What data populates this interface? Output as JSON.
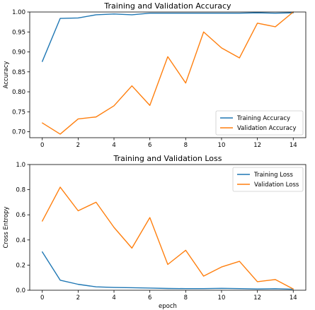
{
  "chart_data": [
    {
      "type": "line",
      "title": "Training and Validation Accuracy",
      "xlabel": "",
      "ylabel": "Accuracy",
      "xlim": [
        -0.7,
        14.7
      ],
      "ylim": [
        0.685,
        1.0
      ],
      "xticks": [
        0,
        2,
        4,
        6,
        8,
        10,
        12,
        14
      ],
      "yticks": [
        0.7,
        0.75,
        0.8,
        0.85,
        0.9,
        0.95,
        1.0
      ],
      "ytick_labels": [
        "0.70",
        "0.75",
        "0.80",
        "0.85",
        "0.90",
        "0.95",
        "1.00"
      ],
      "legend_position": "bottom-right",
      "x": [
        0,
        1,
        2,
        3,
        4,
        5,
        6,
        7,
        8,
        9,
        10,
        11,
        12,
        13,
        14
      ],
      "series": [
        {
          "name": "Training Accuracy",
          "color": "#1f77b4",
          "values": [
            0.876,
            0.984,
            0.985,
            0.993,
            0.995,
            0.993,
            0.997,
            0.997,
            0.997,
            0.997,
            0.997,
            0.997,
            0.998,
            0.997,
            0.998
          ]
        },
        {
          "name": "Validation Accuracy",
          "color": "#ff7f0e",
          "values": [
            0.722,
            0.694,
            0.732,
            0.737,
            0.765,
            0.815,
            0.766,
            0.888,
            0.822,
            0.95,
            0.91,
            0.885,
            0.972,
            0.963,
            1.0
          ]
        }
      ]
    },
    {
      "type": "line",
      "title": "Training and Validation Loss",
      "xlabel": "epoch",
      "ylabel": "Cross Entropy",
      "xlim": [
        -0.7,
        14.7
      ],
      "ylim": [
        0.0,
        1.0
      ],
      "xticks": [
        0,
        2,
        4,
        6,
        8,
        10,
        12,
        14
      ],
      "yticks": [
        0.0,
        0.2,
        0.4,
        0.6,
        0.8,
        1.0
      ],
      "ytick_labels": [
        "0.0",
        "0.2",
        "0.4",
        "0.6",
        "0.8",
        "1.0"
      ],
      "legend_position": "top-right",
      "x": [
        0,
        1,
        2,
        3,
        4,
        5,
        6,
        7,
        8,
        9,
        10,
        11,
        12,
        13,
        14
      ],
      "series": [
        {
          "name": "Training Loss",
          "color": "#1f77b4",
          "values": [
            0.305,
            0.08,
            0.047,
            0.027,
            0.022,
            0.02,
            0.017,
            0.014,
            0.013,
            0.013,
            0.015,
            0.013,
            0.01,
            0.012,
            0.008
          ]
        },
        {
          "name": "Validation Loss",
          "color": "#ff7f0e",
          "values": [
            0.55,
            0.82,
            0.632,
            0.7,
            0.5,
            0.335,
            0.578,
            0.205,
            0.318,
            0.112,
            0.185,
            0.23,
            0.068,
            0.085,
            0.01
          ]
        }
      ]
    }
  ]
}
